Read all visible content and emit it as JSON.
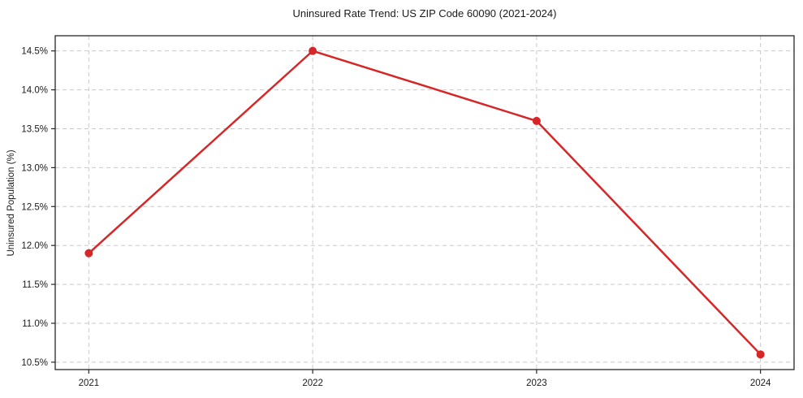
{
  "chart_data": {
    "type": "line",
    "title": "Uninsured Rate Trend: US ZIP Code 60090 (2021-2024)",
    "xlabel": "",
    "ylabel": "Uninsured Population (%)",
    "x": [
      2021,
      2022,
      2023,
      2024
    ],
    "x_tick_labels": [
      "2021",
      "2022",
      "2023",
      "2024"
    ],
    "series": [
      {
        "name": "uninsured-rate",
        "values": [
          11.9,
          14.5,
          13.6,
          10.6
        ]
      }
    ],
    "y_ticks": [
      10.5,
      11.0,
      11.5,
      12.0,
      12.5,
      13.0,
      13.5,
      14.0,
      14.5
    ],
    "y_tick_suffix": "%",
    "xlim": [
      2020.85,
      2024.15
    ],
    "ylim": [
      10.405,
      14.695
    ],
    "grid": true,
    "legend": "none",
    "colors": {
      "line": "#d62728",
      "marker": "#d62728",
      "grid": "#c9c9c9",
      "axis": "#262626",
      "tick_label": "#1a1a1a",
      "background": "#ffffff"
    }
  }
}
